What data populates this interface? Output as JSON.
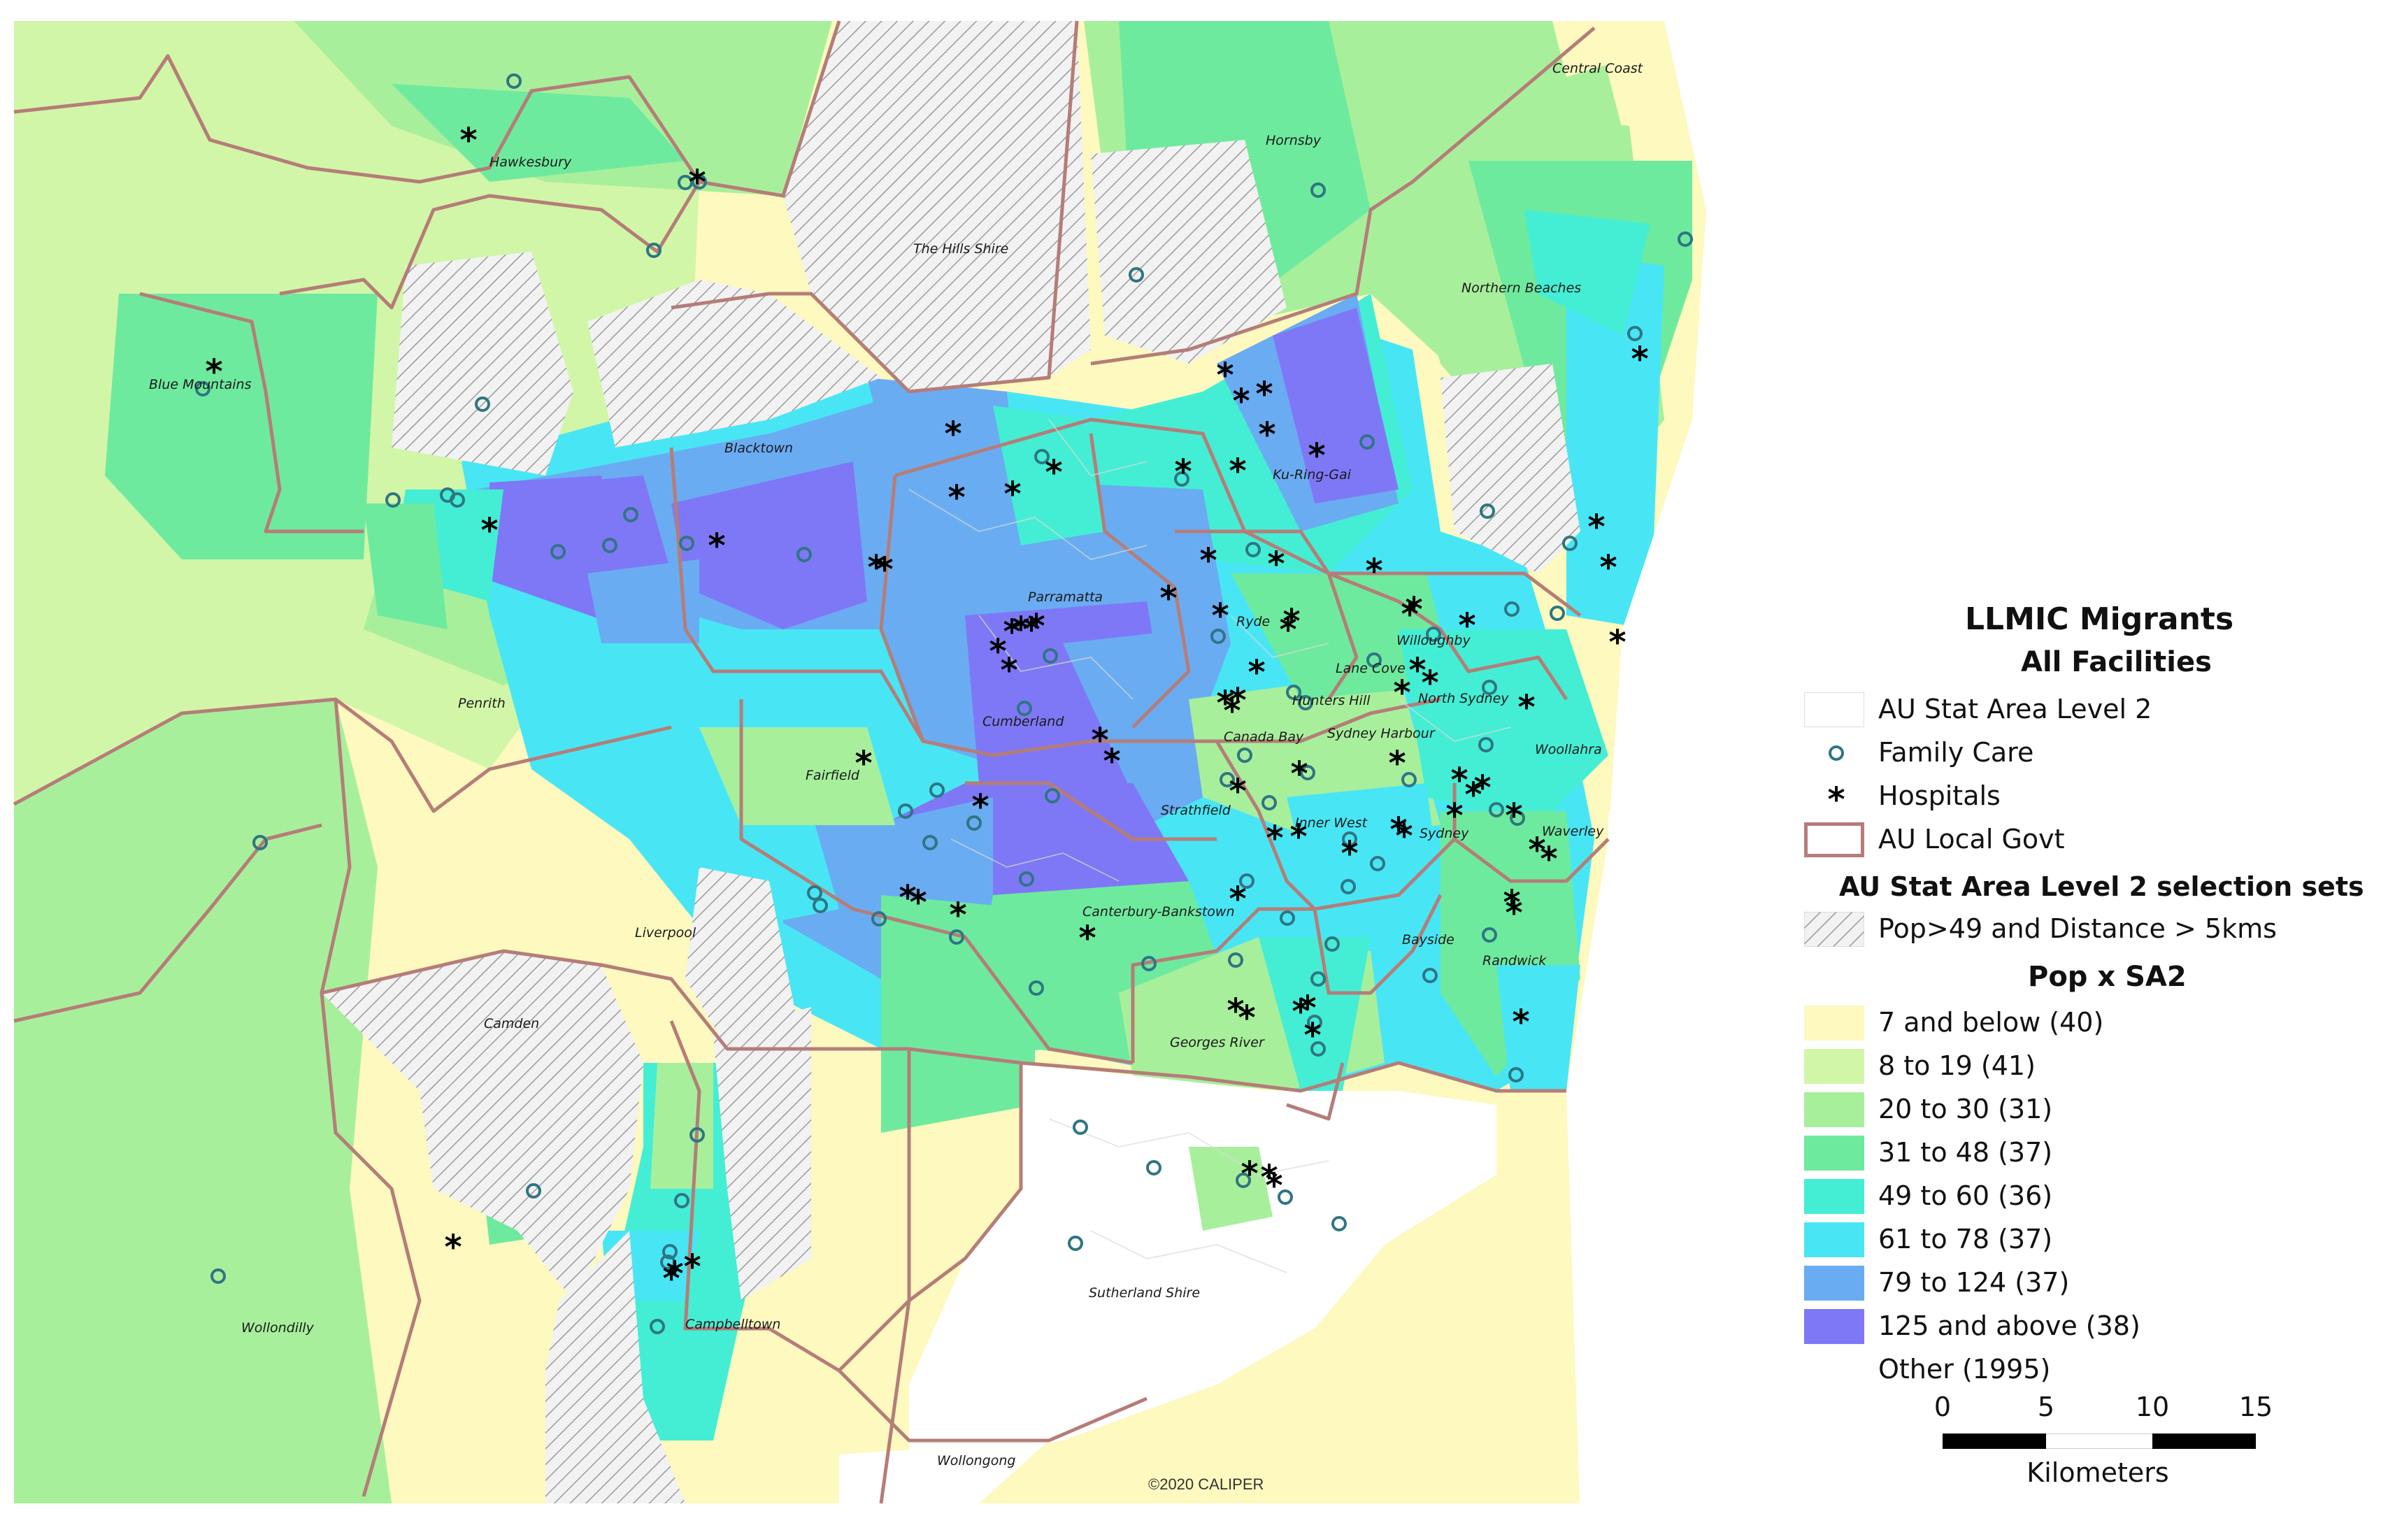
{
  "legend": {
    "title": "LLMIC Migrants",
    "subtitle": "All Facilities",
    "layers": [
      {
        "label": "AU Stat Area Level 2",
        "symbol": "sa2-swatch-icon"
      },
      {
        "label": "Family Care",
        "symbol": "family-care-circle-icon"
      },
      {
        "label": "Hospitals",
        "symbol": "hospital-asterisk-icon"
      },
      {
        "label": "AU Local Govt",
        "symbol": "lga-outline-icon"
      }
    ],
    "selection_heading": "AU Stat Area Level 2 selection sets",
    "selection_label": "Pop>49 and Distance > 5kms",
    "theme_heading": "Pop x SA2",
    "classes": [
      {
        "label": "7 and below (40)",
        "color": "#fdf9bf"
      },
      {
        "label": "8 to 19 (41)",
        "color": "#d2f6a8"
      },
      {
        "label": "20 to 30 (31)",
        "color": "#a8ef9c"
      },
      {
        "label": "31 to 48 (37)",
        "color": "#6eea9e"
      },
      {
        "label": "49 to 60 (36)",
        "color": "#44eed4"
      },
      {
        "label": "61 to 78 (37)",
        "color": "#48e6f4"
      },
      {
        "label": "79 to 124 (37)",
        "color": "#6aacf2"
      },
      {
        "label": "125 and above (38)",
        "color": "#7e78f6"
      },
      {
        "label": "Other (1995)",
        "color": "#ffffff"
      }
    ]
  },
  "scale": {
    "ticks": [
      "0",
      "5",
      "10",
      "15"
    ],
    "unit": "Kilometers"
  },
  "map": {
    "credit": "©2020 CALIPER",
    "colors": {
      "lga_border": "#b57d78",
      "family_care": "#2f7583",
      "hospital": "#000000",
      "hatch": "#9a9a9a"
    },
    "places": [
      "Central Coast",
      "Hawkesbury",
      "Hornsby",
      "The Hills Shire",
      "Northern Beaches",
      "Blue Mountains",
      "Blacktown",
      "Ku-Ring-Gai",
      "Parramatta",
      "Ryde",
      "Willoughby",
      "Lane Cove",
      "Hunters Hill",
      "North Sydney",
      "Penrith",
      "Cumberland",
      "Canada Bay",
      "Sydney Harbour",
      "Woollahra",
      "Fairfield",
      "Strathfield",
      "Inner West",
      "Sydney",
      "Waverley",
      "Canterbury-Bankstown",
      "Liverpool",
      "Bayside",
      "Randwick",
      "Camden",
      "Georges River",
      "Sutherland Shire",
      "Wollondilly",
      "Campbelltown",
      "Wollongong"
    ]
  }
}
